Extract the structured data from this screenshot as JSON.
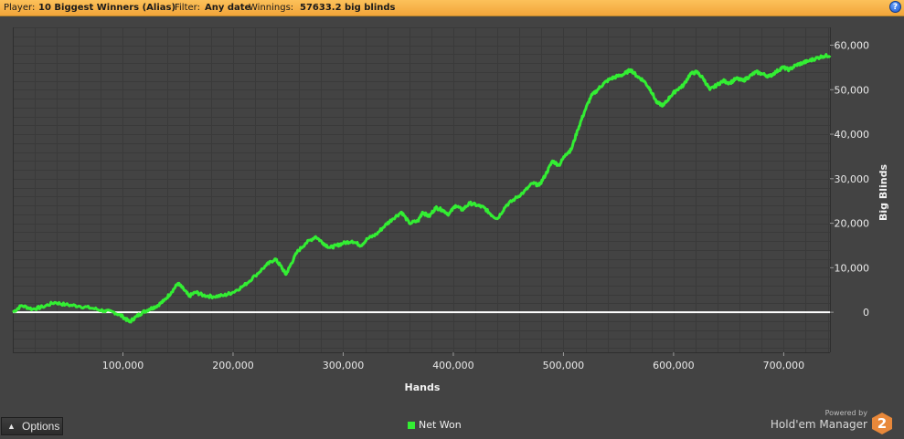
{
  "header": {
    "player_label": "Player:",
    "player_value": "10 Biggest Winners (Alias)",
    "filter_label": "Filter:",
    "filter_value": "Any date",
    "winnings_label": "Winnings:",
    "winnings_value": "57633.2 big blinds",
    "help_glyph": "?"
  },
  "options_label": "Options",
  "brand": {
    "powered": "Powered by",
    "name": "Hold'em Manager",
    "badge": "2"
  },
  "chart_data": {
    "type": "line",
    "xlabel": "Hands",
    "ylabel": "Big Blinds",
    "xlim": [
      0,
      742000
    ],
    "ylim": [
      -9000,
      64000
    ],
    "x_ticks": [
      100000,
      200000,
      300000,
      400000,
      500000,
      600000,
      700000
    ],
    "x_tick_labels": [
      "100,000",
      "200,000",
      "300,000",
      "400,000",
      "500,000",
      "600,000",
      "700,000"
    ],
    "y_ticks": [
      0,
      10000,
      20000,
      30000,
      40000,
      50000,
      60000
    ],
    "y_tick_labels": [
      "0",
      "10,000",
      "20,000",
      "30,000",
      "40,000",
      "50,000",
      "60,000"
    ],
    "grid": true,
    "legend": "bottom-center",
    "colors": {
      "series": "#33ee33",
      "zero_line": "#ffffff",
      "plot_bg": "#434343",
      "grid": "#3a3a3a"
    },
    "series": [
      {
        "name": "Net Won",
        "x": [
          0,
          8000,
          18000,
          27000,
          38000,
          48000,
          60000,
          72000,
          83000,
          92000,
          100000,
          106000,
          112000,
          118000,
          124000,
          130000,
          137000,
          144000,
          150000,
          155000,
          160000,
          166000,
          173000,
          182000,
          192000,
          200000,
          210000,
          220000,
          230000,
          238000,
          243000,
          248000,
          252000,
          258000,
          266000,
          275000,
          282000,
          288000,
          294000,
          300000,
          308000,
          316000,
          322000,
          330000,
          338000,
          345000,
          353000,
          360000,
          368000,
          372000,
          378000,
          384000,
          390000,
          396000,
          402000,
          408000,
          415000,
          422000,
          428000,
          434000,
          440000,
          448000,
          456000,
          464000,
          472000,
          478000,
          484000,
          490000,
          496000,
          502000,
          507000,
          513000,
          519000,
          525000,
          531000,
          537000,
          543000,
          549000,
          555000,
          561000,
          567000,
          573000,
          579000,
          585000,
          591000,
          597000,
          603000,
          609000,
          615000,
          621000,
          627000,
          633000,
          639000,
          645000,
          651000,
          657000,
          663000,
          669000,
          675000,
          681000,
          687000,
          693000,
          699000,
          705000,
          711000,
          717000,
          723000,
          729000,
          735000,
          742000
        ],
        "values": [
          0,
          1500,
          700,
          1200,
          2200,
          1700,
          1400,
          900,
          300,
          0,
          -1000,
          -2200,
          -1000,
          0,
          700,
          1300,
          2500,
          4500,
          6500,
          5200,
          3600,
          4500,
          3800,
          3500,
          3800,
          4500,
          6000,
          8200,
          10500,
          12000,
          10500,
          8500,
          10500,
          13500,
          15500,
          17000,
          15500,
          14500,
          15000,
          15500,
          16000,
          15000,
          16500,
          17500,
          19500,
          21000,
          22500,
          20000,
          20500,
          22500,
          21500,
          23500,
          23000,
          22000,
          24000,
          23000,
          24500,
          24000,
          23500,
          22000,
          21000,
          24000,
          25500,
          27000,
          29000,
          28500,
          31000,
          34000,
          33000,
          35500,
          36500,
          41000,
          45000,
          48500,
          50000,
          51500,
          52500,
          53000,
          53500,
          54500,
          53000,
          52000,
          50000,
          47000,
          46500,
          48500,
          50000,
          51000,
          53500,
          54000,
          52500,
          50000,
          51000,
          52000,
          51500,
          52500,
          52000,
          53000,
          54000,
          53500,
          53000,
          54000,
          55000,
          54500,
          55500,
          56000,
          56500,
          57000,
          57500,
          57700
        ]
      }
    ]
  }
}
